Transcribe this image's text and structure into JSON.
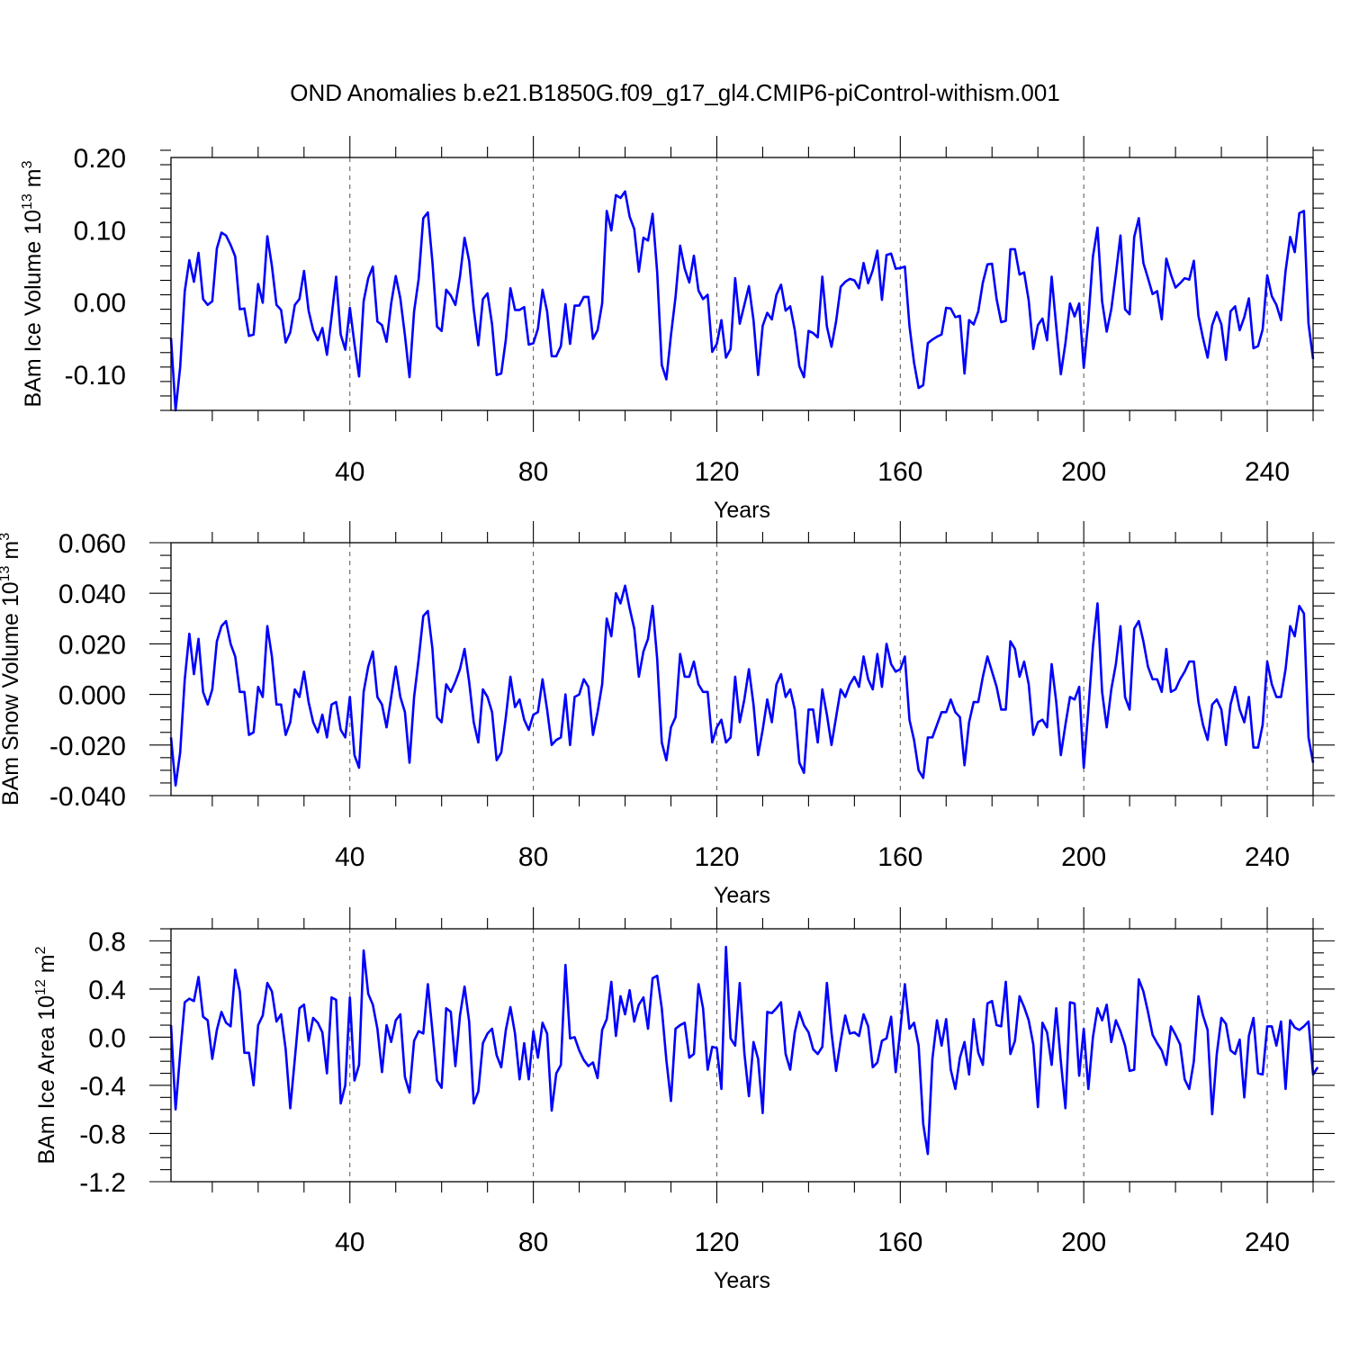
{
  "chart_data": [
    {
      "type": "line",
      "title": "OND Anomalies b.e21.B1850G.f09_g17_gl4.CMIP6-piControl-withism.001",
      "ylabel": "BAm Ice Volume 10",
      "ylabel_exp": "13",
      "ylabel_unit": " m",
      "ylabel_unit_exp": "3",
      "xlabel": "Years",
      "xlim": [
        1,
        250
      ],
      "ylim": [
        -0.15,
        0.2
      ],
      "xticks": [
        40,
        80,
        120,
        160,
        200,
        240
      ],
      "xtick_labels": [
        "40",
        "80",
        "120",
        "160",
        "200",
        "240"
      ],
      "yticks": [
        -0.1,
        0.0,
        0.1,
        0.2
      ],
      "ytick_labels": [
        "-0.10",
        "0.00",
        "0.10",
        "0.20"
      ],
      "ytick_minor_step": 0.02,
      "grid": "dashed vertical at major x ticks",
      "series": [
        {
          "name": "BAm Ice Volume",
          "color": "#0000ff",
          "values": [
            -0.05,
            -0.15,
            -0.09,
            0.015,
            0.058,
            0.028,
            0.068,
            0.004,
            -0.004,
            0.001,
            0.074,
            0.096,
            0.092,
            0.079,
            0.063,
            -0.01,
            -0.009,
            -0.047,
            -0.045,
            0.025,
            -0.001,
            0.091,
            0.05,
            -0.004,
            -0.011,
            -0.056,
            -0.042,
            -0.004,
            0.004,
            0.043,
            -0.012,
            -0.039,
            -0.053,
            -0.036,
            -0.073,
            -0.021,
            0.035,
            -0.045,
            -0.066,
            -0.008,
            -0.058,
            -0.103,
            0.001,
            0.033,
            0.049,
            -0.027,
            -0.032,
            -0.055,
            -0.002,
            0.036,
            0.005,
            -0.046,
            -0.104,
            -0.013,
            0.032,
            0.116,
            0.124,
            0.055,
            -0.034,
            -0.04,
            0.017,
            0.009,
            -0.004,
            0.035,
            0.089,
            0.057,
            -0.01,
            -0.06,
            0.004,
            0.012,
            -0.031,
            -0.101,
            -0.099,
            -0.052,
            0.019,
            -0.011,
            -0.011,
            -0.007,
            -0.059,
            -0.057,
            -0.037,
            0.017,
            -0.013,
            -0.075,
            -0.075,
            -0.061,
            -0.003,
            -0.058,
            -0.005,
            -0.005,
            0.007,
            0.007,
            -0.051,
            -0.039,
            -0.002,
            0.126,
            0.099,
            0.148,
            0.144,
            0.153,
            0.118,
            0.101,
            0.042,
            0.089,
            0.085,
            0.122,
            0.041,
            -0.087,
            -0.107,
            -0.046,
            0.007,
            0.078,
            0.046,
            0.027,
            0.064,
            0.016,
            0.004,
            0.01,
            -0.069,
            -0.058,
            -0.025,
            -0.077,
            -0.065,
            0.033,
            -0.03,
            -0.004,
            0.022,
            -0.025,
            -0.101,
            -0.033,
            -0.015,
            -0.024,
            0.01,
            0.024,
            -0.012,
            -0.006,
            -0.039,
            -0.089,
            -0.104,
            -0.04,
            -0.043,
            -0.049,
            0.035,
            -0.034,
            -0.062,
            -0.027,
            0.021,
            0.028,
            0.032,
            0.03,
            0.019,
            0.054,
            0.026,
            0.044,
            0.071,
            0.003,
            0.065,
            0.067,
            0.046,
            0.047,
            0.049,
            -0.033,
            -0.084,
            -0.119,
            -0.115,
            -0.057,
            -0.052,
            -0.048,
            -0.045,
            -0.008,
            -0.009,
            -0.021,
            -0.019,
            -0.099,
            -0.025,
            -0.031,
            -0.013,
            0.027,
            0.052,
            0.053,
            0.004,
            -0.028,
            -0.026,
            0.073,
            0.073,
            0.038,
            0.041,
            0.002,
            -0.065,
            -0.032,
            -0.023,
            -0.053,
            0.035,
            -0.034,
            -0.1,
            -0.057,
            -0.002,
            -0.02,
            -0.002,
            -0.091,
            -0.025,
            0.063,
            0.103,
            0.001,
            -0.041,
            -0.01,
            0.039,
            0.092,
            -0.01,
            -0.017,
            0.09,
            0.116,
            0.054,
            0.033,
            0.011,
            0.015,
            -0.024,
            0.06,
            0.038,
            0.02,
            0.026,
            0.033,
            0.031,
            0.057,
            -0.019,
            -0.05,
            -0.077,
            -0.032,
            -0.014,
            -0.031,
            -0.08,
            -0.013,
            -0.006,
            -0.039,
            -0.021,
            0.005,
            -0.064,
            -0.061,
            -0.038,
            0.037,
            0.008,
            -0.004,
            -0.025,
            0.043,
            0.09,
            0.069,
            0.123,
            0.126,
            -0.03,
            -0.079
          ]
        }
      ]
    },
    {
      "type": "line",
      "ylabel": "BAm Snow Volume 10",
      "ylabel_exp": "13",
      "ylabel_unit": " m",
      "ylabel_unit_exp": "3",
      "xlabel": "Years",
      "xlim": [
        1,
        250
      ],
      "ylim": [
        -0.04,
        0.06
      ],
      "xticks": [
        40,
        80,
        120,
        160,
        200,
        240
      ],
      "xtick_labels": [
        "40",
        "80",
        "120",
        "160",
        "200",
        "240"
      ],
      "yticks": [
        -0.04,
        -0.02,
        0.0,
        0.02,
        0.04,
        0.06
      ],
      "ytick_labels": [
        "-0.040",
        "-0.020",
        "0.000",
        "0.020",
        "0.040",
        "0.060"
      ],
      "ytick_minor_step": 0.005,
      "grid": "dashed vertical at major x ticks",
      "series": [
        {
          "name": "BAm Snow Volume",
          "color": "#0000ff",
          "values": [
            -0.017,
            -0.036,
            -0.023,
            0.006,
            0.024,
            0.008,
            0.022,
            0.001,
            -0.004,
            0.002,
            0.021,
            0.027,
            0.029,
            0.02,
            0.015,
            0.001,
            0.001,
            -0.016,
            -0.015,
            0.003,
            -0.001,
            0.027,
            0.015,
            -0.004,
            -0.004,
            -0.016,
            -0.011,
            0.002,
            -0.001,
            0.009,
            -0.003,
            -0.011,
            -0.015,
            -0.008,
            -0.017,
            -0.004,
            -0.003,
            -0.014,
            -0.017,
            -0.001,
            -0.024,
            -0.029,
            0.001,
            0.011,
            0.017,
            -0.001,
            -0.004,
            -0.013,
            -0.001,
            0.011,
            -0.001,
            -0.007,
            -0.027,
            -0.001,
            0.014,
            0.031,
            0.033,
            0.018,
            -0.009,
            -0.011,
            0.004,
            0.001,
            0.005,
            0.01,
            0.018,
            0.005,
            -0.011,
            -0.019,
            0.002,
            -0.001,
            -0.007,
            -0.026,
            -0.023,
            -0.009,
            0.007,
            -0.005,
            -0.002,
            -0.01,
            -0.014,
            -0.008,
            -0.007,
            0.006,
            -0.006,
            -0.02,
            -0.018,
            -0.017,
            0.0,
            -0.02,
            -0.001,
            0.0,
            0.006,
            0.003,
            -0.016,
            -0.007,
            0.004,
            0.03,
            0.023,
            0.04,
            0.036,
            0.043,
            0.034,
            0.026,
            0.007,
            0.017,
            0.022,
            0.035,
            0.014,
            -0.019,
            -0.026,
            -0.013,
            -0.009,
            0.016,
            0.007,
            0.007,
            0.013,
            0.004,
            0.001,
            0.001,
            -0.019,
            -0.013,
            -0.01,
            -0.019,
            -0.017,
            0.007,
            -0.011,
            -0.002,
            0.01,
            -0.004,
            -0.024,
            -0.014,
            -0.002,
            -0.011,
            0.004,
            0.008,
            -0.001,
            0.002,
            -0.006,
            -0.027,
            -0.031,
            -0.006,
            -0.006,
            -0.019,
            0.002,
            -0.008,
            -0.02,
            -0.009,
            0.002,
            -0.001,
            0.004,
            0.007,
            0.003,
            0.015,
            0.006,
            0.002,
            0.016,
            0.003,
            0.02,
            0.012,
            0.009,
            0.01,
            0.015,
            -0.01,
            -0.018,
            -0.03,
            -0.033,
            -0.017,
            -0.017,
            -0.012,
            -0.007,
            -0.007,
            -0.002,
            -0.007,
            -0.009,
            -0.028,
            -0.011,
            -0.003,
            -0.003,
            0.007,
            0.015,
            0.009,
            0.003,
            -0.006,
            -0.006,
            0.021,
            0.018,
            0.007,
            0.013,
            0.004,
            -0.016,
            -0.011,
            -0.01,
            -0.013,
            0.012,
            -0.003,
            -0.024,
            -0.012,
            -0.001,
            -0.002,
            0.003,
            -0.029,
            -0.006,
            0.019,
            0.036,
            0.001,
            -0.013,
            0.002,
            0.012,
            0.027,
            -0.001,
            -0.006,
            0.026,
            0.029,
            0.021,
            0.011,
            0.006,
            0.006,
            0.001,
            0.018,
            0.001,
            0.002,
            0.006,
            0.009,
            0.013,
            0.013,
            -0.003,
            -0.012,
            -0.018,
            -0.004,
            -0.002,
            -0.006,
            -0.02,
            -0.004,
            0.003,
            -0.006,
            -0.011,
            -0.001,
            -0.021,
            -0.021,
            -0.012,
            0.013,
            0.004,
            -0.001,
            -0.001,
            0.01,
            0.027,
            0.023,
            0.035,
            0.032,
            -0.017,
            -0.027
          ]
        }
      ]
    },
    {
      "type": "line",
      "ylabel": "BAm Ice Area 10",
      "ylabel_exp": "12",
      "ylabel_unit": " m",
      "ylabel_unit_exp": "2",
      "xlabel": "Years",
      "xlim": [
        1,
        250
      ],
      "ylim": [
        -1.2,
        0.9
      ],
      "xticks": [
        40,
        80,
        120,
        160,
        200,
        240
      ],
      "xtick_labels": [
        "40",
        "80",
        "120",
        "160",
        "200",
        "240"
      ],
      "yticks": [
        -1.2,
        -0.8,
        -0.4,
        0.0,
        0.4,
        0.8
      ],
      "ytick_labels": [
        "-1.2",
        "-0.8",
        "-0.4",
        "0.0",
        "0.4",
        "0.8"
      ],
      "ytick_minor_step": 0.1,
      "grid": "dashed vertical at major x ticks",
      "series": [
        {
          "name": "BAm Ice Area",
          "color": "#0000ff",
          "values": [
            0.1,
            -0.6,
            -0.14,
            0.29,
            0.32,
            0.3,
            0.5,
            0.17,
            0.14,
            -0.18,
            0.06,
            0.21,
            0.12,
            0.09,
            0.56,
            0.38,
            -0.13,
            -0.13,
            -0.4,
            0.1,
            0.18,
            0.45,
            0.38,
            0.13,
            0.19,
            -0.1,
            -0.59,
            -0.18,
            0.24,
            0.27,
            -0.03,
            0.16,
            0.12,
            0.04,
            -0.3,
            0.33,
            0.31,
            -0.55,
            -0.4,
            0.33,
            -0.36,
            -0.23,
            0.72,
            0.36,
            0.27,
            0.07,
            -0.29,
            0.1,
            -0.04,
            0.14,
            0.19,
            -0.33,
            -0.46,
            -0.03,
            0.05,
            0.03,
            0.44,
            0.05,
            -0.36,
            -0.42,
            0.24,
            0.21,
            -0.24,
            0.18,
            0.42,
            0.13,
            -0.55,
            -0.45,
            -0.05,
            0.03,
            0.07,
            -0.15,
            -0.25,
            0.06,
            0.25,
            0.03,
            -0.35,
            -0.05,
            -0.35,
            0.05,
            -0.17,
            0.12,
            0.03,
            -0.61,
            -0.3,
            -0.23,
            0.6,
            -0.01,
            0.0,
            -0.11,
            -0.19,
            -0.24,
            -0.21,
            -0.34,
            0.06,
            0.15,
            0.46,
            0.01,
            0.34,
            0.19,
            0.39,
            0.13,
            0.27,
            0.33,
            0.07,
            0.49,
            0.51,
            0.24,
            -0.19,
            -0.53,
            0.07,
            0.1,
            0.12,
            -0.17,
            -0.14,
            0.44,
            0.24,
            -0.27,
            -0.08,
            -0.09,
            -0.43,
            0.75,
            -0.01,
            -0.07,
            0.45,
            -0.13,
            -0.49,
            -0.04,
            -0.18,
            -0.63,
            0.21,
            0.2,
            0.24,
            0.29,
            -0.14,
            -0.27,
            0.04,
            0.21,
            0.1,
            0.04,
            -0.1,
            -0.14,
            -0.08,
            0.45,
            0.04,
            -0.28,
            -0.03,
            0.18,
            0.03,
            0.04,
            0.01,
            0.19,
            0.09,
            -0.25,
            -0.21,
            -0.03,
            -0.01,
            0.17,
            -0.29,
            0.06,
            0.44,
            0.07,
            0.12,
            -0.07,
            -0.72,
            -0.97,
            -0.18,
            0.14,
            -0.07,
            0.15,
            -0.27,
            -0.43,
            -0.17,
            -0.04,
            -0.31,
            0.15,
            -0.13,
            -0.23,
            0.28,
            0.3,
            0.1,
            0.09,
            0.46,
            -0.14,
            -0.03,
            0.34,
            0.25,
            0.14,
            -0.06,
            -0.58,
            0.12,
            0.04,
            -0.23,
            0.24,
            -0.2,
            -0.59,
            0.29,
            0.28,
            -0.32,
            0.07,
            -0.43,
            0.0,
            0.24,
            0.14,
            0.27,
            -0.04,
            0.14,
            0.05,
            -0.07,
            -0.28,
            -0.27,
            0.48,
            0.38,
            0.21,
            0.02,
            -0.05,
            -0.11,
            -0.23,
            0.09,
            0.02,
            -0.06,
            -0.35,
            -0.43,
            -0.2,
            0.34,
            0.18,
            0.06,
            -0.64,
            -0.14,
            0.16,
            0.11,
            -0.11,
            -0.14,
            -0.02,
            -0.5,
            0.01,
            0.16,
            -0.3,
            -0.31,
            0.09,
            0.09,
            -0.07,
            0.13,
            -0.43,
            0.14,
            0.08,
            0.06,
            0.09,
            0.13,
            -0.31,
            -0.25
          ]
        }
      ]
    }
  ]
}
